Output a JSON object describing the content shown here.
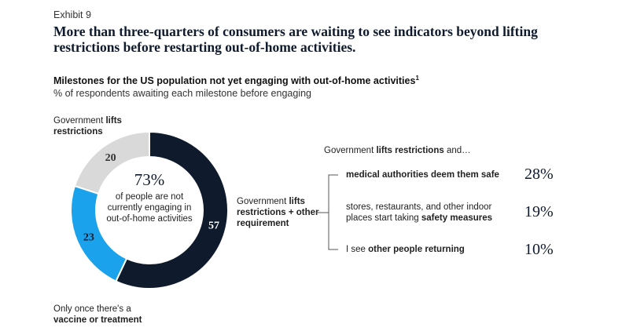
{
  "exhibit_label": "Exhibit 9",
  "headline": "More than three-quarters of consumers are waiting to see indicators beyond lifting restrictions before restarting out-of-home activities.",
  "subtitle": "Milestones for the US population not yet engaging with out-of-home activities",
  "subtitle_footnote": "1",
  "subnote": "% of respondents awaiting each milestone before engaging",
  "colors": {
    "navy": "#0f1b2d",
    "blue": "#1aa3ec",
    "gray": "#d9d9d9"
  },
  "chart_data": {
    "type": "pie",
    "slices": [
      {
        "label_plain": "Government ",
        "label_bold": "lifts restrictions",
        "value": 20,
        "color": "#d9d9d9"
      },
      {
        "label_plain": "Government ",
        "label_bold": "lifts restrictions + other requirement",
        "value": 57,
        "color": "#0f1b2d"
      },
      {
        "label_plain": "Only once there's a ",
        "label_bold": "vaccine or treatment",
        "value": 23,
        "color": "#1aa3ec"
      }
    ],
    "center": {
      "value": "73%",
      "text": "of people are not currently engaging in out-of-home activities"
    }
  },
  "breakdown": {
    "header_plain": "Government ",
    "header_bold": "lifts restrictions",
    "header_tail": " and…",
    "items": [
      {
        "plain": "",
        "bold": "medical authorities deem them safe",
        "value": "28%"
      },
      {
        "plain": "stores, restaurants, and other indoor places start taking ",
        "bold": "safety measures",
        "value": "19%"
      },
      {
        "plain": "I see ",
        "bold": "other people returning",
        "value": "10%"
      }
    ]
  }
}
